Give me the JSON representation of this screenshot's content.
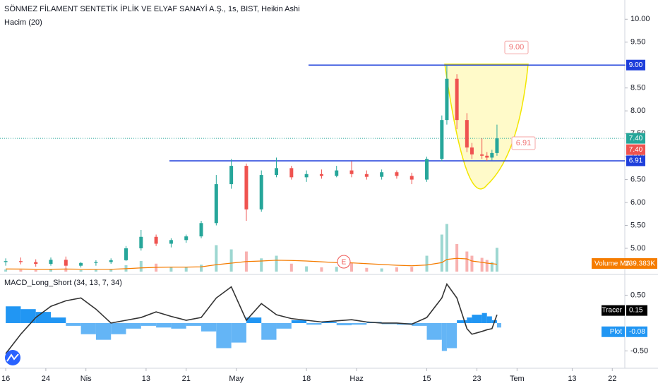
{
  "chart_data": [
    {
      "type": "candlestick",
      "title": "SÖNMEZ FİLAMENT SENTETİK İPLİK VE ELYAF SANAYİ A.Ş., 1s, BIST, Heikin Ashi",
      "subtitle": "Hacim (20)",
      "up_color": "#26a69a",
      "down_color": "#ef5350",
      "x": [
        1,
        4,
        7,
        10,
        13,
        16,
        19,
        22,
        25,
        28,
        31,
        34,
        37,
        40,
        43,
        46,
        49,
        52,
        55,
        58,
        61,
        64,
        67,
        70,
        73,
        76,
        79,
        82,
        85,
        88,
        89,
        91,
        93,
        94,
        96,
        97,
        98,
        99
      ],
      "open": [
        4.7,
        4.72,
        4.7,
        4.66,
        4.75,
        4.62,
        4.68,
        4.7,
        4.74,
        5.0,
        5.25,
        5.1,
        5.18,
        5.26,
        5.55,
        6.4,
        6.8,
        5.85,
        6.6,
        6.75,
        6.55,
        6.62,
        6.58,
        6.7,
        6.62,
        6.56,
        6.66,
        6.58,
        6.5,
        6.95,
        7.8,
        8.7,
        7.8,
        7.2,
        7.05,
        7.02,
        6.98,
        7.08
      ],
      "high": [
        4.78,
        4.8,
        4.76,
        4.8,
        4.82,
        4.7,
        4.74,
        4.78,
        5.05,
        5.4,
        5.3,
        5.22,
        5.3,
        5.6,
        6.6,
        6.95,
        6.85,
        6.7,
        6.98,
        6.8,
        6.7,
        6.72,
        6.8,
        6.9,
        6.7,
        6.72,
        6.7,
        6.65,
        7.0,
        7.9,
        9.0,
        8.8,
        7.95,
        7.3,
        7.4,
        7.1,
        7.15,
        7.7
      ],
      "low": [
        4.62,
        4.65,
        4.6,
        4.62,
        4.55,
        4.58,
        4.62,
        4.66,
        4.72,
        4.95,
        5.05,
        5.02,
        5.12,
        5.22,
        5.5,
        6.3,
        5.6,
        5.8,
        6.55,
        6.5,
        6.45,
        6.52,
        6.55,
        6.55,
        6.5,
        6.5,
        6.52,
        6.4,
        6.45,
        6.9,
        7.7,
        7.6,
        7.1,
        6.95,
        6.95,
        6.91,
        6.92,
        7.02
      ],
      "close": [
        4.72,
        4.7,
        4.66,
        4.75,
        4.62,
        4.68,
        4.7,
        4.74,
        5.0,
        5.25,
        5.1,
        5.18,
        5.26,
        5.55,
        6.4,
        6.8,
        5.85,
        6.6,
        6.75,
        6.55,
        6.62,
        6.58,
        6.7,
        6.62,
        6.56,
        6.66,
        6.58,
        6.5,
        6.95,
        7.8,
        8.7,
        7.8,
        7.2,
        7.05,
        7.02,
        6.98,
        7.08,
        7.4
      ],
      "xlim": [
        0,
        124.5
      ],
      "xticks": [
        {
          "value": 1,
          "label": "16"
        },
        {
          "value": 9,
          "label": "24"
        },
        {
          "value": 17,
          "label": "Nis"
        },
        {
          "value": 29,
          "label": "13"
        },
        {
          "value": 37,
          "label": "21"
        },
        {
          "value": 47,
          "label": "May"
        },
        {
          "value": 61,
          "label": "18"
        },
        {
          "value": 71,
          "label": "Haz"
        },
        {
          "value": 85,
          "label": "15"
        },
        {
          "value": 95,
          "label": "23"
        },
        {
          "value": 103,
          "label": "Tem"
        },
        {
          "value": 114,
          "label": "13"
        },
        {
          "value": 122,
          "label": "22"
        }
      ],
      "ylim": [
        4.43,
        10.42
      ],
      "yticks": [
        {
          "value": 5,
          "label": "5.00"
        },
        {
          "value": 5.5,
          "label": "5.50"
        },
        {
          "value": 6,
          "label": "6.00"
        },
        {
          "value": 6.5,
          "label": "6.50"
        },
        {
          "value": 7,
          "label": "7.00"
        },
        {
          "value": 7.5,
          "label": "7.50"
        },
        {
          "value": 8,
          "label": "8.00"
        },
        {
          "value": 8.5,
          "label": "8.50"
        },
        {
          "value": 9,
          "label": "9.00"
        },
        {
          "value": 9.5,
          "label": "9.50"
        },
        {
          "value": 10,
          "label": "10.00"
        }
      ],
      "levels": [
        {
          "value": 9,
          "label": "9.00",
          "color": "#1e3fdb"
        },
        {
          "value": 6.91,
          "label": "6.91",
          "color": "#1e3fdb"
        }
      ],
      "last_price": {
        "value": 7.4,
        "label": "7.40",
        "color": "#26a69a"
      },
      "axis_labels": [
        {
          "value": 9,
          "label": "9.00",
          "color": "#1e3fdb"
        },
        {
          "value": 7.4,
          "label": "7.40",
          "color": "#26a69a"
        },
        {
          "value": 7.4,
          "label": "7.40",
          "color": "#ef5350"
        },
        {
          "value": 6.91,
          "label": "6.91",
          "color": "#1e3fdb"
        }
      ],
      "annotations": [
        {
          "value": 9,
          "label": "9.00"
        },
        {
          "value": 6.91,
          "label": "6.91"
        }
      ],
      "event_marker": "E"
    },
    {
      "type": "volume",
      "values": [
        40,
        35,
        30,
        45,
        60,
        30,
        35,
        40,
        120,
        200,
        150,
        90,
        80,
        130,
        500,
        420,
        380,
        250,
        300,
        150,
        100,
        80,
        90,
        160,
        70,
        60,
        80,
        90,
        300,
        700,
        900,
        520,
        380,
        300,
        260,
        220,
        180,
        450
      ],
      "ma": [
        50,
        48,
        45,
        45,
        48,
        46,
        44,
        44,
        55,
        70,
        80,
        85,
        85,
        90,
        130,
        160,
        190,
        200,
        215,
        210,
        200,
        185,
        170,
        165,
        150,
        135,
        120,
        110,
        125,
        170,
        230,
        250,
        240,
        200,
        175,
        160,
        150,
        139.383
      ],
      "ma_color": "#f57c00",
      "ylim": [
        0,
        1000
      ],
      "ma_name": "Volume MA",
      "ma_last": {
        "value": 139.383,
        "label": "139.383K"
      }
    },
    {
      "type": "macd",
      "title": "MACD_Long_Short (34, 13, 7, 34)",
      "line": [
        -0.55,
        -0.2,
        0.1,
        0.3,
        0.4,
        0.45,
        0.25,
        0.0,
        0.05,
        0.1,
        0.2,
        0.12,
        0.05,
        0.1,
        0.45,
        0.65,
        0.05,
        0.35,
        0.15,
        0.08,
        0.05,
        0.02,
        0.04,
        0.06,
        0.02,
        0.0,
        0.0,
        -0.02,
        0.1,
        0.45,
        0.7,
        0.45,
        -0.1,
        -0.2,
        -0.15,
        -0.12,
        -0.1,
        0.15
      ],
      "histogram": [
        0.3,
        0.25,
        0.2,
        0.1,
        -0.05,
        -0.2,
        -0.3,
        -0.2,
        -0.1,
        -0.05,
        -0.08,
        -0.1,
        -0.05,
        -0.15,
        -0.45,
        -0.35,
        0.1,
        -0.3,
        -0.1,
        0.05,
        -0.03,
        0.02,
        -0.04,
        -0.03,
        0.02,
        -0.02,
        -0.03,
        -0.05,
        -0.3,
        -0.5,
        -0.45,
        0.05,
        0.1,
        0.15,
        0.18,
        0.12,
        0.05,
        -0.08
      ],
      "line_color": "#333333",
      "hist_up_color": "#2196f3",
      "hist_down_color": "#64b5f6",
      "ylim": [
        -0.76,
        0.86
      ],
      "yticks": [
        {
          "value": 0.5,
          "label": "0.50"
        },
        {
          "value": -0.5,
          "label": "-0.50"
        }
      ],
      "tracer": {
        "name": "Tracer",
        "value": 0.15
      },
      "plot": {
        "name": "Plot",
        "value": -0.08
      }
    }
  ]
}
